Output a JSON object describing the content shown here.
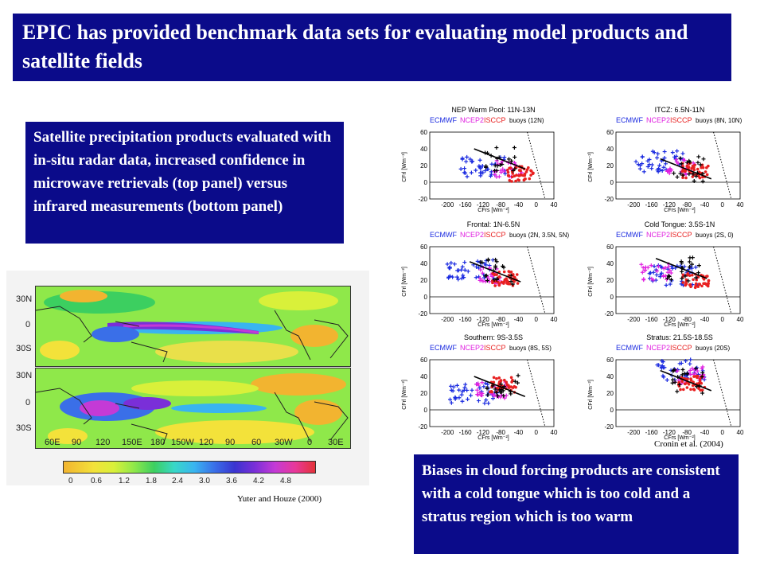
{
  "title": "EPIC has provided benchmark data sets for evaluating model products and satellite fields",
  "left_text": "Satellite precipitation products evaluated with in-situ radar data, increased confidence in microwave retrievals (top panel) versus infrared measurements (bottom panel)",
  "right_text": "Biases in cloud forcing products are consistent with a cold tongue which is too cold and a stratus region which is too warm",
  "citations": {
    "map": "Yuter and Houze (2000)",
    "plots": "Cronin et al. (2004)"
  },
  "map": {
    "lat_labels": [
      "30N",
      "0",
      "30S"
    ],
    "lon_labels": [
      "60E",
      "90",
      "120",
      "150E",
      "180",
      "150W",
      "120",
      "90",
      "60",
      "30W",
      "0",
      "30E"
    ],
    "colorbar_labels": [
      "0",
      "0.6",
      "1.2",
      "1.8",
      "2.4",
      "3.0",
      "3.6",
      "4.2",
      "4.8"
    ]
  },
  "plots": {
    "legend": [
      "ECMWF",
      "NCEP2",
      "ISCCP"
    ],
    "ylabel": "CFrl [Wm⁻²]",
    "xlabel": "CFrs [Wm⁻²]",
    "xticks": [
      "-200",
      "-160",
      "-120",
      "-80",
      "-40",
      "0",
      "40"
    ],
    "yticks": [
      "60",
      "40",
      "20",
      "0",
      "-20"
    ],
    "panels": [
      {
        "title": "NEP Warm Pool: 11N-13N",
        "buoys": "buoys (12N)"
      },
      {
        "title": "ITCZ: 6.5N-11N",
        "buoys": "buoys (8N, 10N)"
      },
      {
        "title": "Frontal: 1N-6.5N",
        "buoys": "buoys (2N, 3.5N, 5N)"
      },
      {
        "title": "Cold Tongue: 3.5S-1N",
        "buoys": "buoys (2S, 0)"
      },
      {
        "title": "Southern: 9S-3.5S",
        "buoys": "buoys (8S, 5S)"
      },
      {
        "title": "Stratus: 21.5S-18.5S",
        "buoys": "buoys (20S)"
      }
    ]
  },
  "colors": {
    "navy": "#0b0b8a",
    "ecmwf": "#1a2ae0",
    "ncep2": "#e020e0",
    "isccp": "#e82020",
    "buoy": "#000000"
  }
}
